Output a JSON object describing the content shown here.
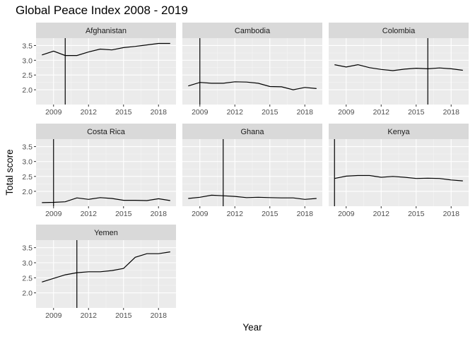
{
  "chart_data": {
    "type": "line",
    "title": "Global Peace Index 2008 - 2019",
    "xlabel": "Year",
    "ylabel": "Total score",
    "xlim": [
      2007.5,
      2019.5
    ],
    "ylim": [
      1.5,
      3.75
    ],
    "x_ticks": [
      2009,
      2012,
      2015,
      2018
    ],
    "y_ticks": [
      2.0,
      2.5,
      3.0,
      3.5
    ],
    "y_tick_labels": [
      "2.0",
      "2.5",
      "3.0",
      "3.5"
    ],
    "grid": true,
    "x": [
      2008,
      2009,
      2010,
      2011,
      2012,
      2013,
      2014,
      2015,
      2016,
      2017,
      2018,
      2019
    ],
    "panels": [
      {
        "name": "Afghanistan",
        "values": [
          3.18,
          3.31,
          3.16,
          3.16,
          3.28,
          3.38,
          3.35,
          3.43,
          3.47,
          3.52,
          3.57,
          3.57
        ],
        "vline": 2010
      },
      {
        "name": "Cambodia",
        "values": [
          2.13,
          2.25,
          2.22,
          2.22,
          2.27,
          2.26,
          2.22,
          2.11,
          2.1,
          2.0,
          2.08,
          2.04
        ],
        "vline": 2009
      },
      {
        "name": "Colombia",
        "values": [
          2.85,
          2.77,
          2.85,
          2.75,
          2.69,
          2.65,
          2.7,
          2.73,
          2.71,
          2.74,
          2.71,
          2.66
        ],
        "vline": 2016
      },
      {
        "name": "Costa Rica",
        "values": [
          1.62,
          1.63,
          1.65,
          1.78,
          1.73,
          1.79,
          1.76,
          1.7,
          1.7,
          1.69,
          1.75,
          1.69
        ],
        "vline": 2009
      },
      {
        "name": "Ghana",
        "values": [
          1.76,
          1.8,
          1.87,
          1.85,
          1.83,
          1.79,
          1.8,
          1.79,
          1.78,
          1.78,
          1.73,
          1.76
        ],
        "vline": 2011
      },
      {
        "name": "Kenya",
        "values": [
          2.43,
          2.51,
          2.53,
          2.53,
          2.47,
          2.5,
          2.47,
          2.43,
          2.44,
          2.43,
          2.38,
          2.35
        ],
        "vline": 2008
      },
      {
        "name": "Yemen",
        "values": [
          2.36,
          2.48,
          2.6,
          2.67,
          2.7,
          2.7,
          2.74,
          2.81,
          3.18,
          3.3,
          3.3,
          3.36
        ],
        "vline": 2011
      }
    ]
  }
}
